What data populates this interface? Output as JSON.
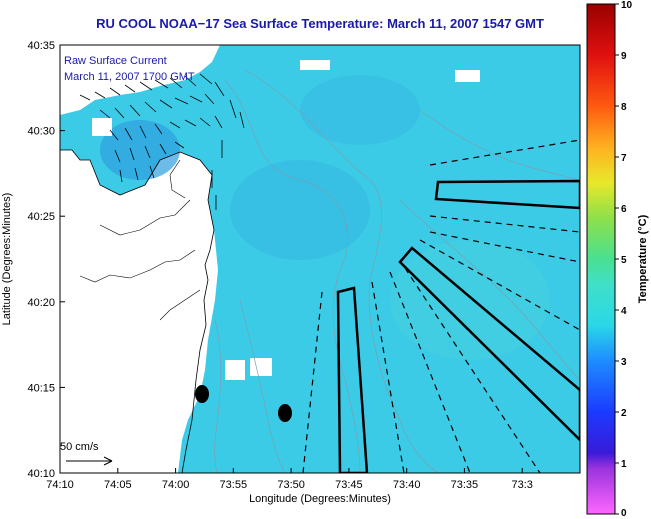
{
  "title": "RU COOL  NOAA−17  Sea Surface Temperature:  March 11, 2007 1547 GMT",
  "overlay": {
    "line1": "Raw Surface Current",
    "line2": "March 11, 2007 1700 GMT"
  },
  "axes": {
    "xlabel": "Longitude (Degrees:Minutes)",
    "ylabel": "Latitude (Degrees:Minutes)",
    "xticks": [
      "74:10",
      "74:05",
      "74:00",
      "73:55",
      "73:50",
      "73:45",
      "73:40",
      "73:35",
      "73:3"
    ],
    "yticks": [
      "40:35",
      "40:30",
      "40:25",
      "40:20",
      "40:15",
      "40:10"
    ]
  },
  "scale_vector": {
    "label": "50 cm/s"
  },
  "colorbar": {
    "label": "Temperature (°C)",
    "ticks": [
      "10",
      "9",
      "8",
      "7",
      "6",
      "5",
      "4",
      "3",
      "2",
      "1",
      "0"
    ],
    "range": [
      0,
      10
    ]
  },
  "colors": {
    "title": "#1a1aa8",
    "ocean": "#3ccbe6",
    "land": "#ffffff"
  }
}
